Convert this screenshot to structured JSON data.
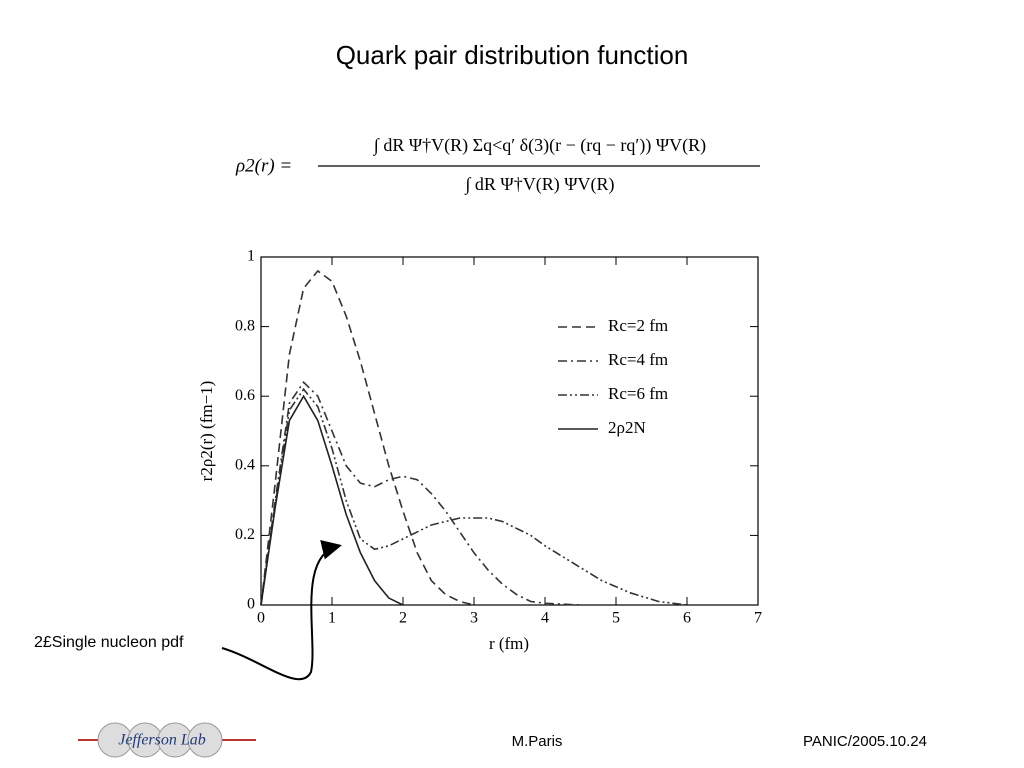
{
  "slide": {
    "title": "Quark pair distribution function",
    "formula": {
      "lhs": "ρ2(r) =",
      "numerator": "∫ dR Ψ†V(R) Σq<q′ δ(3)(r − (rq − rq′)) ΨV(R)",
      "denominator": "∫ dR Ψ†V(R) ΨV(R)"
    },
    "annotation": "2£Single nucleon pdf",
    "footer": {
      "logo": "Jefferson Lab",
      "author": "M.Paris",
      "event": "PANIC/2005.10.24"
    }
  },
  "chart_data": {
    "type": "line",
    "x_label": "r (fm)",
    "y_label": "r2ρ2(r) (fm−1)",
    "xlim": [
      0,
      7
    ],
    "ylim": [
      0,
      1
    ],
    "xticks": [
      0,
      1,
      2,
      3,
      4,
      5,
      6,
      7
    ],
    "yticks": [
      0,
      0.2,
      0.4,
      0.6,
      0.8,
      1
    ],
    "legend": "upper right",
    "series": [
      {
        "name": "Rc=2 fm",
        "color": "#333333",
        "dash": "dashed",
        "x": [
          0,
          0.2,
          0.4,
          0.6,
          0.8,
          1.0,
          1.2,
          1.4,
          1.6,
          1.8,
          2.0,
          2.2,
          2.4,
          2.6,
          2.8,
          3.0
        ],
        "values": [
          0,
          0.35,
          0.72,
          0.91,
          0.96,
          0.93,
          0.83,
          0.7,
          0.55,
          0.4,
          0.27,
          0.15,
          0.07,
          0.03,
          0.01,
          0
        ]
      },
      {
        "name": "Rc=4 fm",
        "color": "#333333",
        "dash": "dashdot",
        "x": [
          0,
          0.2,
          0.4,
          0.6,
          0.8,
          1.0,
          1.2,
          1.4,
          1.6,
          1.8,
          2.0,
          2.2,
          2.4,
          2.6,
          2.8,
          3.0,
          3.2,
          3.4,
          3.6,
          3.8,
          4.0,
          4.5
        ],
        "values": [
          0,
          0.3,
          0.58,
          0.64,
          0.6,
          0.5,
          0.4,
          0.35,
          0.34,
          0.36,
          0.37,
          0.36,
          0.32,
          0.27,
          0.21,
          0.15,
          0.1,
          0.06,
          0.03,
          0.01,
          0.005,
          0
        ]
      },
      {
        "name": "Rc=6 fm",
        "color": "#333333",
        "dash": "dashdotdot",
        "x": [
          0,
          0.2,
          0.4,
          0.6,
          0.8,
          1.0,
          1.2,
          1.4,
          1.6,
          1.8,
          2.0,
          2.2,
          2.4,
          2.6,
          2.8,
          3.0,
          3.2,
          3.4,
          3.6,
          3.8,
          4.0,
          4.4,
          4.8,
          5.2,
          5.6,
          6.0
        ],
        "values": [
          0,
          0.29,
          0.56,
          0.62,
          0.57,
          0.45,
          0.3,
          0.19,
          0.16,
          0.17,
          0.19,
          0.21,
          0.23,
          0.24,
          0.25,
          0.25,
          0.25,
          0.24,
          0.22,
          0.2,
          0.17,
          0.12,
          0.07,
          0.035,
          0.01,
          0
        ]
      },
      {
        "name": "2ρ2N",
        "color": "#222222",
        "dash": "solid",
        "x": [
          0,
          0.2,
          0.4,
          0.6,
          0.8,
          1.0,
          1.2,
          1.4,
          1.6,
          1.8,
          2.0
        ],
        "values": [
          0,
          0.28,
          0.53,
          0.6,
          0.53,
          0.4,
          0.26,
          0.15,
          0.07,
          0.02,
          0
        ]
      }
    ]
  }
}
